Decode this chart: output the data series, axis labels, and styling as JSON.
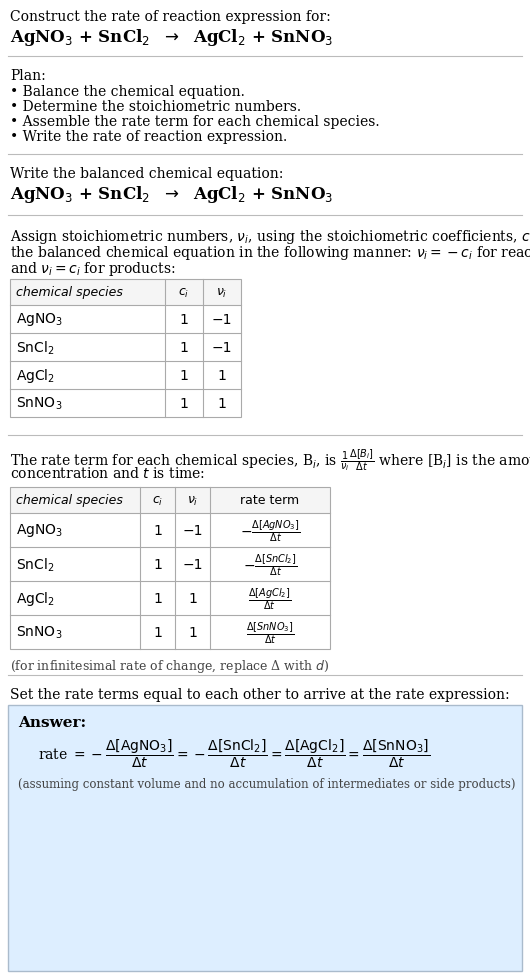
{
  "bg_color": "#ffffff",
  "text_color": "#000000",
  "gray_text": "#555555",
  "title_line1": "Construct the rate of reaction expression for:",
  "plan_header": "Plan:",
  "plan_items": [
    "• Balance the chemical equation.",
    "• Determine the stoichiometric numbers.",
    "• Assemble the rate term for each chemical species.",
    "• Write the rate of reaction expression."
  ],
  "balanced_header": "Write the balanced chemical equation:",
  "stoich_text": [
    "Assign stoichiometric numbers, $\\nu_i$, using the stoichiometric coefficients, $c_i$, from",
    "the balanced chemical equation in the following manner: $\\nu_i = -c_i$ for reactants",
    "and $\\nu_i = c_i$ for products:"
  ],
  "table1_headers": [
    "chemical species",
    "$c_i$",
    "$\\nu_i$"
  ],
  "table1_rows": [
    [
      "AgNO$_3$",
      "1",
      "−1"
    ],
    [
      "SnCl$_2$",
      "1",
      "−1"
    ],
    [
      "AgCl$_2$",
      "1",
      "1"
    ],
    [
      "SnNO$_3$",
      "1",
      "1"
    ]
  ],
  "rate_text": [
    "The rate term for each chemical species, B$_i$, is $\\frac{1}{\\nu_i}\\frac{\\Delta[B_i]}{\\Delta t}$ where [B$_i$] is the amount",
    "concentration and $t$ is time:"
  ],
  "table2_headers": [
    "chemical species",
    "$c_i$",
    "$\\nu_i$",
    "rate term"
  ],
  "table2_rows": [
    [
      "AgNO$_3$",
      "1",
      "−1",
      "$-\\frac{\\Delta[AgNO_3]}{\\Delta t}$"
    ],
    [
      "SnCl$_2$",
      "1",
      "−1",
      "$-\\frac{\\Delta[SnCl_2]}{\\Delta t}$"
    ],
    [
      "AgCl$_2$",
      "1",
      "1",
      "$\\frac{\\Delta[AgCl_2]}{\\Delta t}$"
    ],
    [
      "SnNO$_3$",
      "1",
      "1",
      "$\\frac{\\Delta[SnNO_3]}{\\Delta t}$"
    ]
  ],
  "infinitesimal_note": "(for infinitesimal rate of change, replace Δ with $d$)",
  "set_equal_text": "Set the rate terms equal to each other to arrive at the rate expression:",
  "answer_box_color": "#ddeeff",
  "answer_box_border": "#aabbcc",
  "answer_label": "Answer:",
  "assuming_note": "(assuming constant volume and no accumulation of intermediates or side products)"
}
